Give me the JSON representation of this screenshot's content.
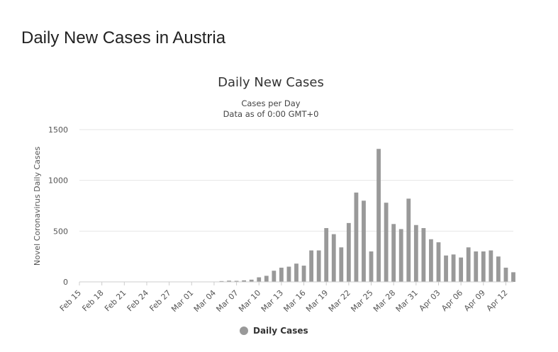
{
  "page": {
    "title": "Daily New Cases in Austria"
  },
  "chart_data": {
    "type": "bar",
    "title": "Daily New Cases",
    "subtitle_lines": [
      "Cases per Day",
      "Data as of 0:00 GMT+0"
    ],
    "ylabel": "Novel Coronavirus Daily Cases",
    "xlabel": "",
    "ylim": [
      0,
      1500
    ],
    "yticks": [
      0,
      500,
      1000,
      1500
    ],
    "grid": true,
    "legend_position": "bottom-center",
    "bar_color": "#999999",
    "categories": [
      "Feb 15",
      "Feb 16",
      "Feb 17",
      "Feb 18",
      "Feb 19",
      "Feb 20",
      "Feb 21",
      "Feb 22",
      "Feb 23",
      "Feb 24",
      "Feb 25",
      "Feb 26",
      "Feb 27",
      "Feb 28",
      "Feb 29",
      "Mar 01",
      "Mar 02",
      "Mar 03",
      "Mar 04",
      "Mar 05",
      "Mar 06",
      "Mar 07",
      "Mar 08",
      "Mar 09",
      "Mar 10",
      "Mar 11",
      "Mar 12",
      "Mar 13",
      "Mar 14",
      "Mar 15",
      "Mar 16",
      "Mar 17",
      "Mar 18",
      "Mar 19",
      "Mar 20",
      "Mar 21",
      "Mar 22",
      "Mar 23",
      "Mar 24",
      "Mar 25",
      "Mar 26",
      "Mar 27",
      "Mar 28",
      "Mar 29",
      "Mar 30",
      "Mar 31",
      "Apr 01",
      "Apr 02",
      "Apr 03",
      "Apr 04",
      "Apr 05",
      "Apr 06",
      "Apr 07",
      "Apr 08",
      "Apr 09",
      "Apr 10",
      "Apr 11",
      "Apr 12",
      "Apr 13"
    ],
    "tick_labels": [
      "Feb 15",
      "Feb 18",
      "Feb 21",
      "Feb 24",
      "Feb 27",
      "Mar 01",
      "Mar 04",
      "Mar 07",
      "Mar 10",
      "Mar 13",
      "Mar 16",
      "Mar 19",
      "Mar 22",
      "Mar 25",
      "Mar 28",
      "Mar 31",
      "Apr 03",
      "Apr 06",
      "Apr 09",
      "Apr 12"
    ],
    "series": [
      {
        "name": "Daily Cases",
        "values": [
          0,
          0,
          0,
          0,
          0,
          0,
          0,
          0,
          0,
          0,
          2,
          1,
          0,
          0,
          0,
          0,
          0,
          0,
          0,
          8,
          12,
          10,
          15,
          22,
          45,
          60,
          110,
          140,
          150,
          180,
          160,
          310,
          310,
          530,
          470,
          340,
          580,
          880,
          800,
          300,
          1310,
          780,
          570,
          520,
          820,
          560,
          530,
          420,
          390,
          260,
          270,
          240,
          340,
          300,
          300,
          310,
          250,
          140,
          95
        ]
      }
    ]
  }
}
